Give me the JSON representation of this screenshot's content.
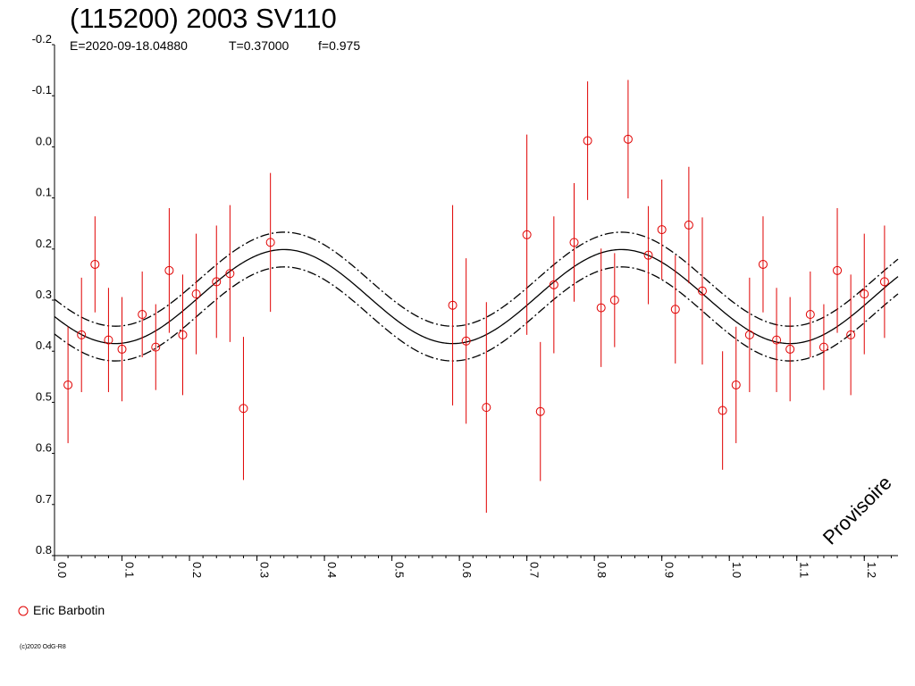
{
  "chart_data": {
    "type": "scatter",
    "title": "(115200) 2003 SV110",
    "subtitle": {
      "epoch": "E=2020-09-18.04880",
      "period": "T=0.37000",
      "f": "f=0.975"
    },
    "xlabel": "",
    "ylabel": "",
    "xlim": [
      0.0,
      1.25
    ],
    "ylim": [
      -0.2,
      0.8
    ],
    "y_inverted": true,
    "grid": false,
    "y_ticks": [
      "-0.2",
      "-0.1",
      "0.0",
      "0.1",
      "0.2",
      "0.3",
      "0.4",
      "0.5",
      "0.6",
      "0.7",
      "0.8"
    ],
    "x_ticks": [
      "0.0",
      "0.1",
      "0.2",
      "0.3",
      "0.4",
      "0.5",
      "0.6",
      "0.7",
      "0.8",
      "0.9",
      "1.0",
      "1.1",
      "1.2"
    ],
    "watermark": "Provisoire",
    "legend": {
      "position": "bottom-left",
      "label": "Eric Barbotin"
    },
    "copyright": "(c)2020 OdG-R8",
    "colors": {
      "points": "#e00000",
      "fit": "#000000",
      "axes": "#000000"
    },
    "fit": {
      "mean": 0.293,
      "amplitude": 0.092,
      "cycles_per_unit": 2,
      "phase_of_minimum_y": 0.34,
      "envelope_offset": 0.034
    },
    "series": [
      {
        "name": "Eric Barbotin",
        "points": [
          {
            "x": 0.02,
            "y": 0.466,
            "err": 0.114
          },
          {
            "x": 0.04,
            "y": 0.368,
            "err": 0.112
          },
          {
            "x": 0.06,
            "y": 0.23,
            "err": 0.094
          },
          {
            "x": 0.08,
            "y": 0.378,
            "err": 0.102
          },
          {
            "x": 0.1,
            "y": 0.396,
            "err": 0.102
          },
          {
            "x": 0.13,
            "y": 0.328,
            "err": 0.084
          },
          {
            "x": 0.15,
            "y": 0.392,
            "err": 0.084
          },
          {
            "x": 0.17,
            "y": 0.242,
            "err": 0.122
          },
          {
            "x": 0.19,
            "y": 0.368,
            "err": 0.118
          },
          {
            "x": 0.21,
            "y": 0.288,
            "err": 0.118
          },
          {
            "x": 0.24,
            "y": 0.264,
            "err": 0.11
          },
          {
            "x": 0.26,
            "y": 0.248,
            "err": 0.134
          },
          {
            "x": 0.28,
            "y": 0.512,
            "err": 0.14
          },
          {
            "x": 0.32,
            "y": 0.187,
            "err": 0.136
          },
          {
            "x": 0.59,
            "y": 0.31,
            "err": 0.196
          },
          {
            "x": 0.61,
            "y": 0.38,
            "err": 0.162
          },
          {
            "x": 0.64,
            "y": 0.51,
            "err": 0.206
          },
          {
            "x": 0.7,
            "y": 0.172,
            "err": 0.196
          },
          {
            "x": 0.72,
            "y": 0.518,
            "err": 0.136
          },
          {
            "x": 0.74,
            "y": 0.27,
            "err": 0.134
          },
          {
            "x": 0.77,
            "y": 0.187,
            "err": 0.116
          },
          {
            "x": 0.79,
            "y": -0.012,
            "err": 0.116
          },
          {
            "x": 0.81,
            "y": 0.315,
            "err": 0.116
          },
          {
            "x": 0.83,
            "y": 0.3,
            "err": 0.092
          },
          {
            "x": 0.85,
            "y": -0.015,
            "err": 0.116
          },
          {
            "x": 0.88,
            "y": 0.212,
            "err": 0.096
          },
          {
            "x": 0.9,
            "y": 0.162,
            "err": 0.098
          },
          {
            "x": 0.92,
            "y": 0.318,
            "err": 0.106
          },
          {
            "x": 0.94,
            "y": 0.153,
            "err": 0.114
          },
          {
            "x": 0.96,
            "y": 0.282,
            "err": 0.144
          },
          {
            "x": 0.99,
            "y": 0.516,
            "err": 0.116
          },
          {
            "x": 1.01,
            "y": 0.466,
            "err": 0.114
          },
          {
            "x": 1.03,
            "y": 0.368,
            "err": 0.112
          },
          {
            "x": 1.05,
            "y": 0.23,
            "err": 0.094
          },
          {
            "x": 1.07,
            "y": 0.378,
            "err": 0.102
          },
          {
            "x": 1.09,
            "y": 0.396,
            "err": 0.102
          },
          {
            "x": 1.12,
            "y": 0.328,
            "err": 0.084
          },
          {
            "x": 1.14,
            "y": 0.392,
            "err": 0.084
          },
          {
            "x": 1.16,
            "y": 0.242,
            "err": 0.122
          },
          {
            "x": 1.18,
            "y": 0.368,
            "err": 0.118
          },
          {
            "x": 1.2,
            "y": 0.288,
            "err": 0.118
          },
          {
            "x": 1.23,
            "y": 0.264,
            "err": 0.11
          }
        ]
      }
    ]
  }
}
